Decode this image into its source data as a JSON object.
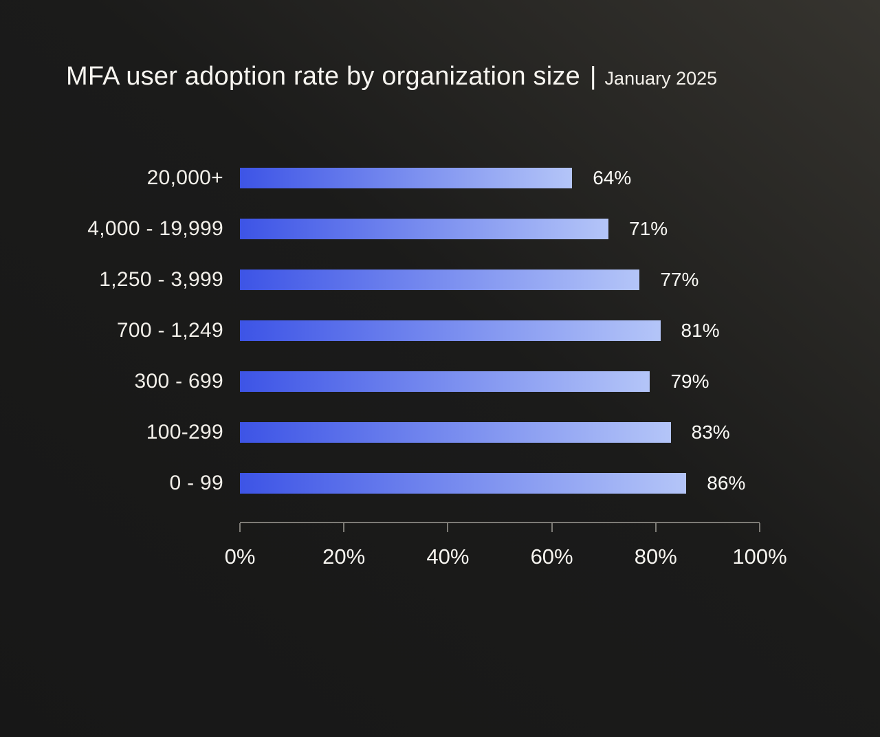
{
  "page": {
    "title": "MFA user adoption rate by organization size",
    "title_separator": "|",
    "subtitle": "January 2025"
  },
  "chart_data": {
    "type": "bar",
    "orientation": "horizontal",
    "title": "MFA user adoption rate by organization size",
    "subtitle": "January 2025",
    "categories": [
      "20,000+",
      "4,000 - 19,999",
      "1,250 - 3,999",
      "700 - 1,249",
      "300 - 699",
      "100-299",
      "0 - 99"
    ],
    "values": [
      64,
      71,
      77,
      81,
      79,
      83,
      86
    ],
    "value_suffix": "%",
    "xlabel": "",
    "ylabel": "",
    "xlim": [
      0,
      100
    ],
    "x_ticks": [
      "0%",
      "20%",
      "40%",
      "60%",
      "80%",
      "100%"
    ],
    "grid": false,
    "legend": false
  },
  "colors": {
    "bar-start": "#3D54E6",
    "bar-end": "#B4C5F8",
    "bg-dark": "#171717",
    "bg-light": "#36342F",
    "text": "#F4F1EB",
    "axis": "#7D7B76"
  }
}
